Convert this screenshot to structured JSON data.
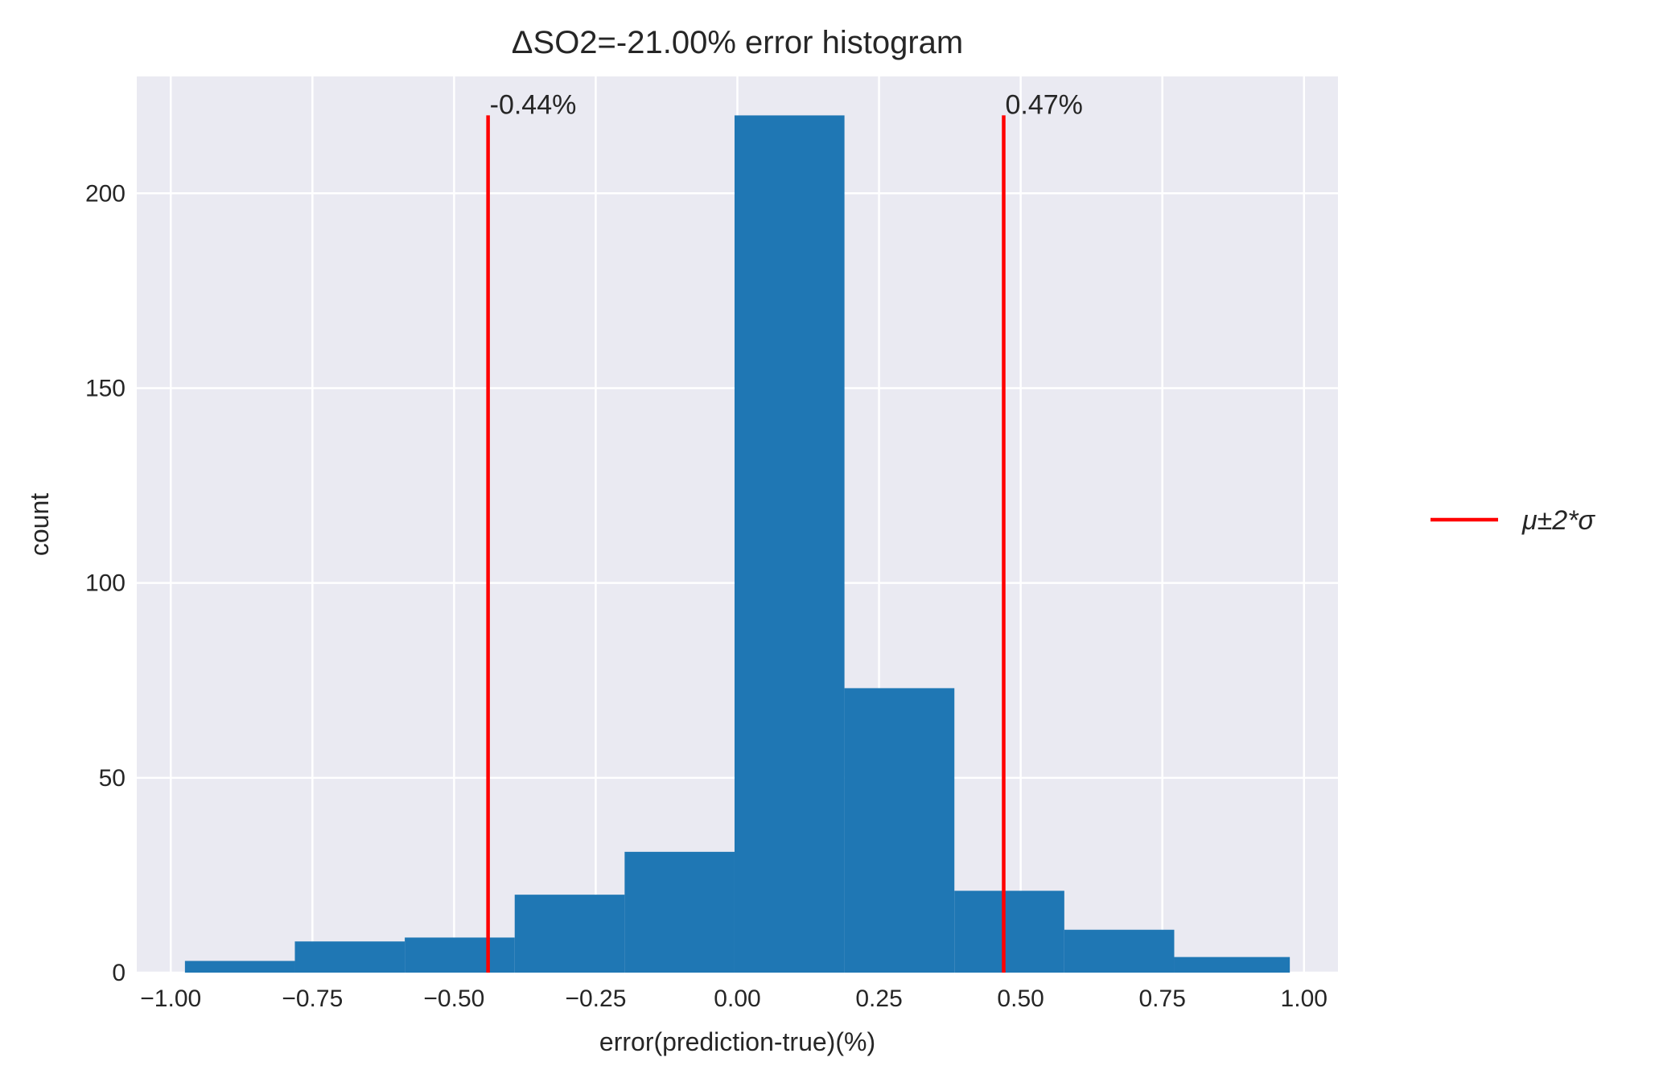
{
  "chart_data": {
    "type": "bar",
    "title": "ΔSO2=-21.00% error histogram",
    "xlabel": "error(prediction-true)(%)",
    "ylabel": "count",
    "xlim": [
      -1.06,
      1.06
    ],
    "ylim": [
      0,
      230
    ],
    "grid": true,
    "legend_placement": "right, outside",
    "xticks": [
      -1.0,
      -0.75,
      -0.5,
      -0.25,
      0.0,
      0.25,
      0.5,
      0.75,
      1.0
    ],
    "xtick_labels": [
      "−1.00",
      "−0.75",
      "−0.50",
      "−0.25",
      "0.00",
      "0.25",
      "0.50",
      "0.75",
      "1.00"
    ],
    "yticks": [
      0,
      50,
      100,
      150,
      200
    ],
    "ytick_labels": [
      "0",
      "50",
      "100",
      "150",
      "200"
    ],
    "bins": [
      {
        "x0": -0.975,
        "x1": -0.781,
        "count": 3
      },
      {
        "x0": -0.781,
        "x1": -0.587,
        "count": 8
      },
      {
        "x0": -0.587,
        "x1": -0.393,
        "count": 9
      },
      {
        "x0": -0.393,
        "x1": -0.199,
        "count": 20
      },
      {
        "x0": -0.199,
        "x1": -0.005,
        "count": 31
      },
      {
        "x0": -0.005,
        "x1": 0.189,
        "count": 220
      },
      {
        "x0": 0.189,
        "x1": 0.383,
        "count": 73
      },
      {
        "x0": 0.383,
        "x1": 0.577,
        "count": 21
      },
      {
        "x0": 0.577,
        "x1": 0.771,
        "count": 11
      },
      {
        "x0": 0.771,
        "x1": 0.975,
        "count": 4
      }
    ],
    "bar_color": "#1f77b4",
    "lines": [
      {
        "x": -0.44,
        "label": "-0.44%"
      },
      {
        "x": 0.47,
        "label": "0.47%"
      }
    ],
    "line_top": 220,
    "line_color": "#ff0000",
    "legend": [
      {
        "label": "μ±2*σ",
        "color": "#ff0000"
      }
    ],
    "background_color": "#eaeaf2",
    "grid_color": "#ffffff"
  }
}
